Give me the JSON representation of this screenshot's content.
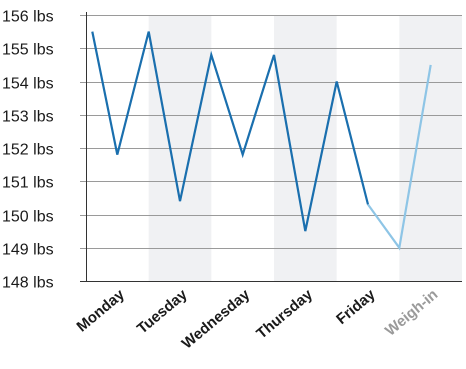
{
  "chart_data": {
    "type": "line",
    "title": "",
    "xlabel": "",
    "ylabel": "",
    "unit": "lbs",
    "ylim": [
      148,
      156
    ],
    "y_ticks": [
      {
        "value": 156,
        "label": "156 lbs"
      },
      {
        "value": 155,
        "label": "155 lbs"
      },
      {
        "value": 154,
        "label": "154 lbs"
      },
      {
        "value": 153,
        "label": "153 lbs"
      },
      {
        "value": 152,
        "label": "152 lbs"
      },
      {
        "value": 151,
        "label": "151 lbs"
      },
      {
        "value": 150,
        "label": "150 lbs"
      },
      {
        "value": 149,
        "label": "149 lbs"
      },
      {
        "value": 148,
        "label": "148 lbs"
      }
    ],
    "categories": [
      {
        "label": "Monday",
        "shaded": false,
        "muted": false
      },
      {
        "label": "Tuesday",
        "shaded": true,
        "muted": false
      },
      {
        "label": "Wednesday",
        "shaded": false,
        "muted": false
      },
      {
        "label": "Thursday",
        "shaded": true,
        "muted": false
      },
      {
        "label": "Friday",
        "shaded": false,
        "muted": false
      },
      {
        "label": "Weigh-in",
        "shaded": true,
        "muted": true
      }
    ],
    "grid": "horizontal",
    "legend": "none",
    "series": [
      {
        "color": "#1a6fae",
        "points": [
          {
            "x": 0.1,
            "y": 155.5
          },
          {
            "x": 0.5,
            "y": 151.8
          },
          {
            "x": 1.0,
            "y": 155.5
          },
          {
            "x": 1.5,
            "y": 150.4
          },
          {
            "x": 2.0,
            "y": 154.8
          },
          {
            "x": 2.5,
            "y": 151.8
          },
          {
            "x": 3.0,
            "y": 154.8
          },
          {
            "x": 3.5,
            "y": 149.5
          },
          {
            "x": 4.0,
            "y": 154.0
          },
          {
            "x": 4.5,
            "y": 150.3
          }
        ]
      },
      {
        "color": "#8ec5e6",
        "points": [
          {
            "x": 4.5,
            "y": 150.3
          },
          {
            "x": 5.0,
            "y": 149.0
          },
          {
            "x": 5.5,
            "y": 154.5
          }
        ]
      }
    ],
    "colors": {
      "shade": "#f0f1f3",
      "grid": "#9a9a9a",
      "axis": "#333333",
      "label": "#1a1a1a",
      "muted_label": "#9a9a9a"
    }
  }
}
